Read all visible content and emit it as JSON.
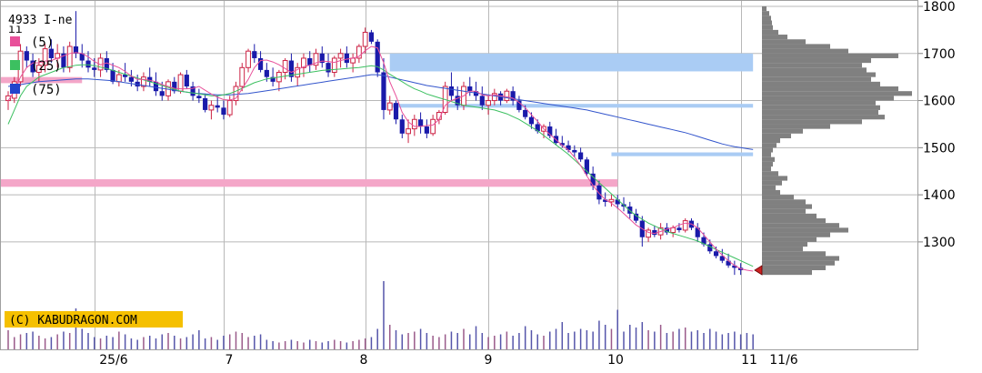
{
  "chart_data": {
    "type": "candlestick",
    "title": "4933 I-ne",
    "copyright": "(C) KABUDRAGON.COM",
    "y_ticks": [
      1800,
      1700,
      1600,
      1500,
      1400,
      1300
    ],
    "x_labels": [
      "25/6",
      "7",
      "8",
      "9",
      "10",
      "11",
      "11/6"
    ],
    "ylim": [
      1200,
      1800
    ],
    "grid": true,
    "legend": [
      {
        "label": "(5)",
        "color": "#e8509a"
      },
      {
        "label": "(25)",
        "color": "#3cc060"
      },
      {
        "label": "(75)",
        "color": "#2244cc"
      }
    ],
    "colors": {
      "up": "#cc2244",
      "down": "#1a1aaa",
      "ma5": "#e8509a",
      "ma25": "#3cc060",
      "ma75": "#3355cc",
      "support_zone": "#f4a6c8",
      "resistance_zone": "#aaccf4",
      "volume": "#5555aa",
      "profile": "#808080",
      "current_marker": "#cc2222"
    },
    "volume_profile": {
      "bins": [
        [
          1795,
          5
        ],
        [
          1785,
          8
        ],
        [
          1775,
          10
        ],
        [
          1765,
          11
        ],
        [
          1755,
          12
        ],
        [
          1745,
          18
        ],
        [
          1735,
          28
        ],
        [
          1725,
          48
        ],
        [
          1715,
          75
        ],
        [
          1705,
          95
        ],
        [
          1695,
          150
        ],
        [
          1685,
          120
        ],
        [
          1675,
          110
        ],
        [
          1665,
          115
        ],
        [
          1655,
          125
        ],
        [
          1645,
          120
        ],
        [
          1635,
          130
        ],
        [
          1625,
          150
        ],
        [
          1615,
          165
        ],
        [
          1605,
          145
        ],
        [
          1595,
          125
        ],
        [
          1585,
          130
        ],
        [
          1575,
          128
        ],
        [
          1565,
          135
        ],
        [
          1555,
          110
        ],
        [
          1545,
          75
        ],
        [
          1535,
          45
        ],
        [
          1525,
          32
        ],
        [
          1515,
          20
        ],
        [
          1505,
          16
        ],
        [
          1495,
          12
        ],
        [
          1485,
          10
        ],
        [
          1475,
          14
        ],
        [
          1465,
          12
        ],
        [
          1455,
          10
        ],
        [
          1445,
          18
        ],
        [
          1435,
          28
        ],
        [
          1425,
          22
        ],
        [
          1415,
          15
        ],
        [
          1405,
          20
        ],
        [
          1395,
          35
        ],
        [
          1385,
          48
        ],
        [
          1375,
          55
        ],
        [
          1365,
          48
        ],
        [
          1355,
          60
        ],
        [
          1345,
          70
        ],
        [
          1335,
          85
        ],
        [
          1325,
          95
        ],
        [
          1315,
          75
        ],
        [
          1305,
          60
        ],
        [
          1295,
          50
        ],
        [
          1285,
          45
        ],
        [
          1275,
          70
        ],
        [
          1265,
          85
        ],
        [
          1255,
          80
        ],
        [
          1245,
          70
        ],
        [
          1235,
          55
        ]
      ]
    },
    "zones": [
      {
        "type": "support",
        "from": 1417,
        "to": 1433,
        "start_index": 0,
        "end_index": 99
      },
      {
        "type": "support",
        "from": 1637,
        "to": 1650,
        "start_index": 0,
        "end_index": 12
      },
      {
        "type": "resistance",
        "from": 1662,
        "to": 1700,
        "start_index": 62,
        "end_index": 121
      },
      {
        "type": "resistance",
        "from": 1585,
        "to": 1593,
        "start_index": 62,
        "end_index": 121
      },
      {
        "type": "resistance",
        "from": 1482,
        "to": 1490,
        "start_index": 98,
        "end_index": 121
      }
    ],
    "last_price": 1240,
    "day_label_indices": [
      14,
      35,
      58,
      78,
      99,
      119
    ],
    "ohlc": [
      [
        1600,
        1620,
        1580,
        1610
      ],
      [
        1605,
        1650,
        1595,
        1640
      ],
      [
        1640,
        1720,
        1630,
        1705
      ],
      [
        1705,
        1715,
        1670,
        1685
      ],
      [
        1685,
        1700,
        1650,
        1660
      ],
      [
        1660,
        1690,
        1640,
        1675
      ],
      [
        1675,
        1720,
        1660,
        1710
      ],
      [
        1710,
        1730,
        1680,
        1690
      ],
      [
        1690,
        1720,
        1670,
        1700
      ],
      [
        1700,
        1715,
        1660,
        1670
      ],
      [
        1670,
        1725,
        1660,
        1715
      ],
      [
        1715,
        1790,
        1690,
        1700
      ],
      [
        1700,
        1720,
        1670,
        1685
      ],
      [
        1685,
        1705,
        1660,
        1670
      ],
      [
        1670,
        1690,
        1650,
        1665
      ],
      [
        1665,
        1700,
        1650,
        1690
      ],
      [
        1690,
        1705,
        1660,
        1665
      ],
      [
        1665,
        1680,
        1635,
        1640
      ],
      [
        1640,
        1665,
        1630,
        1655
      ],
      [
        1655,
        1680,
        1640,
        1650
      ],
      [
        1650,
        1665,
        1630,
        1640
      ],
      [
        1640,
        1655,
        1620,
        1630
      ],
      [
        1630,
        1660,
        1620,
        1650
      ],
      [
        1650,
        1670,
        1630,
        1640
      ],
      [
        1640,
        1660,
        1610,
        1620
      ],
      [
        1620,
        1640,
        1600,
        1610
      ],
      [
        1610,
        1645,
        1600,
        1640
      ],
      [
        1640,
        1650,
        1615,
        1620
      ],
      [
        1620,
        1660,
        1615,
        1655
      ],
      [
        1655,
        1665,
        1625,
        1630
      ],
      [
        1630,
        1640,
        1600,
        1610
      ],
      [
        1610,
        1625,
        1595,
        1605
      ],
      [
        1605,
        1615,
        1575,
        1580
      ],
      [
        1580,
        1600,
        1560,
        1590
      ],
      [
        1590,
        1610,
        1575,
        1585
      ],
      [
        1585,
        1600,
        1560,
        1570
      ],
      [
        1570,
        1610,
        1565,
        1600
      ],
      [
        1600,
        1640,
        1590,
        1630
      ],
      [
        1630,
        1680,
        1620,
        1670
      ],
      [
        1670,
        1710,
        1660,
        1705
      ],
      [
        1705,
        1720,
        1680,
        1690
      ],
      [
        1690,
        1705,
        1660,
        1665
      ],
      [
        1665,
        1680,
        1640,
        1650
      ],
      [
        1650,
        1670,
        1630,
        1640
      ],
      [
        1640,
        1665,
        1620,
        1660
      ],
      [
        1660,
        1690,
        1645,
        1685
      ],
      [
        1685,
        1700,
        1640,
        1650
      ],
      [
        1650,
        1680,
        1630,
        1670
      ],
      [
        1670,
        1700,
        1650,
        1690
      ],
      [
        1690,
        1705,
        1660,
        1675
      ],
      [
        1675,
        1710,
        1665,
        1700
      ],
      [
        1700,
        1715,
        1670,
        1680
      ],
      [
        1680,
        1700,
        1650,
        1660
      ],
      [
        1660,
        1695,
        1650,
        1690
      ],
      [
        1690,
        1710,
        1670,
        1700
      ],
      [
        1700,
        1715,
        1670,
        1680
      ],
      [
        1680,
        1700,
        1660,
        1690
      ],
      [
        1690,
        1720,
        1680,
        1715
      ],
      [
        1715,
        1755,
        1700,
        1745
      ],
      [
        1745,
        1750,
        1720,
        1725
      ],
      [
        1725,
        1730,
        1650,
        1660
      ],
      [
        1660,
        1690,
        1560,
        1580
      ],
      [
        1580,
        1610,
        1570,
        1595
      ],
      [
        1595,
        1600,
        1550,
        1560
      ],
      [
        1560,
        1570,
        1520,
        1530
      ],
      [
        1530,
        1560,
        1510,
        1540
      ],
      [
        1540,
        1570,
        1525,
        1560
      ],
      [
        1560,
        1575,
        1530,
        1545
      ],
      [
        1545,
        1560,
        1520,
        1530
      ],
      [
        1530,
        1570,
        1525,
        1560
      ],
      [
        1560,
        1580,
        1550,
        1575
      ],
      [
        1575,
        1640,
        1570,
        1630
      ],
      [
        1630,
        1660,
        1600,
        1610
      ],
      [
        1610,
        1630,
        1580,
        1590
      ],
      [
        1590,
        1640,
        1580,
        1630
      ],
      [
        1630,
        1650,
        1610,
        1620
      ],
      [
        1620,
        1640,
        1600,
        1610
      ],
      [
        1610,
        1630,
        1580,
        1590
      ],
      [
        1590,
        1610,
        1570,
        1600
      ],
      [
        1600,
        1625,
        1590,
        1615
      ],
      [
        1615,
        1620,
        1590,
        1600
      ],
      [
        1600,
        1625,
        1595,
        1620
      ],
      [
        1620,
        1630,
        1590,
        1600
      ],
      [
        1600,
        1610,
        1575,
        1580
      ],
      [
        1580,
        1590,
        1560,
        1565
      ],
      [
        1565,
        1575,
        1540,
        1550
      ],
      [
        1550,
        1560,
        1530,
        1535
      ],
      [
        1535,
        1550,
        1520,
        1545
      ],
      [
        1545,
        1555,
        1520,
        1525
      ],
      [
        1525,
        1540,
        1505,
        1510
      ],
      [
        1510,
        1525,
        1500,
        1505
      ],
      [
        1505,
        1515,
        1490,
        1495
      ],
      [
        1495,
        1505,
        1480,
        1490
      ],
      [
        1490,
        1500,
        1470,
        1475
      ],
      [
        1475,
        1480,
        1440,
        1445
      ],
      [
        1445,
        1460,
        1410,
        1420
      ],
      [
        1420,
        1430,
        1380,
        1390
      ],
      [
        1390,
        1405,
        1375,
        1385
      ],
      [
        1385,
        1400,
        1375,
        1390
      ],
      [
        1390,
        1400,
        1370,
        1380
      ],
      [
        1380,
        1395,
        1365,
        1375
      ],
      [
        1375,
        1385,
        1350,
        1360
      ],
      [
        1360,
        1370,
        1340,
        1345
      ],
      [
        1345,
        1355,
        1290,
        1310
      ],
      [
        1310,
        1330,
        1300,
        1325
      ],
      [
        1325,
        1335,
        1310,
        1315
      ],
      [
        1315,
        1340,
        1305,
        1330
      ],
      [
        1330,
        1340,
        1315,
        1320
      ],
      [
        1320,
        1335,
        1310,
        1330
      ],
      [
        1330,
        1340,
        1320,
        1325
      ],
      [
        1325,
        1350,
        1320,
        1345
      ],
      [
        1345,
        1350,
        1325,
        1330
      ],
      [
        1330,
        1340,
        1300,
        1310
      ],
      [
        1310,
        1320,
        1290,
        1295
      ],
      [
        1295,
        1305,
        1275,
        1280
      ],
      [
        1280,
        1290,
        1265,
        1270
      ],
      [
        1270,
        1285,
        1255,
        1260
      ],
      [
        1260,
        1275,
        1245,
        1250
      ],
      [
        1250,
        1260,
        1230,
        1245
      ],
      [
        1245,
        1255,
        1230,
        1240
      ]
    ],
    "volume": [
      28,
      18,
      22,
      24,
      26,
      20,
      16,
      18,
      22,
      26,
      24,
      60,
      30,
      24,
      18,
      16,
      20,
      18,
      26,
      22,
      16,
      14,
      18,
      20,
      16,
      22,
      24,
      20,
      16,
      18,
      22,
      28,
      16,
      18,
      14,
      20,
      22,
      26,
      24,
      18,
      20,
      22,
      14,
      12,
      10,
      12,
      14,
      12,
      10,
      14,
      12,
      10,
      12,
      14,
      12,
      10,
      12,
      14,
      16,
      18,
      30,
      100,
      36,
      28,
      22,
      24,
      26,
      30,
      24,
      20,
      18,
      22,
      26,
      24,
      30,
      22,
      34,
      24,
      18,
      20,
      22,
      26,
      20,
      24,
      34,
      28,
      22,
      20,
      26,
      30,
      40,
      24,
      26,
      30,
      28,
      26,
      42,
      36,
      30,
      58,
      26,
      36,
      32,
      40,
      28,
      26,
      36,
      24,
      26,
      30,
      32,
      26,
      28,
      24,
      30,
      26,
      22,
      24,
      26,
      22,
      24,
      22
    ],
    "ma5": [
      1600,
      1620,
      1650,
      1670,
      1680,
      1680,
      1684,
      1685,
      1690,
      1695,
      1700,
      1702,
      1700,
      1693,
      1683,
      1676,
      1680,
      1675,
      1670,
      1662,
      1652,
      1645,
      1645,
      1643,
      1640,
      1634,
      1630,
      1626,
      1625,
      1625,
      1626,
      1630,
      1622,
      1614,
      1607,
      1602,
      1601,
      1605,
      1625,
      1645,
      1670,
      1685,
      1686,
      1682,
      1676,
      1668,
      1660,
      1666,
      1672,
      1675,
      1680,
      1684,
      1683,
      1681,
      1685,
      1688,
      1690,
      1694,
      1706,
      1715,
      1712,
      1680,
      1640,
      1610,
      1575,
      1555,
      1545,
      1545,
      1547,
      1548,
      1560,
      1590,
      1600,
      1605,
      1610,
      1620,
      1620,
      1612,
      1610,
      1612,
      1610,
      1608,
      1605,
      1596,
      1585,
      1570,
      1556,
      1540,
      1528,
      1517,
      1505,
      1495,
      1480,
      1462,
      1440,
      1420,
      1403,
      1390,
      1382,
      1372,
      1360,
      1348,
      1336,
      1328,
      1320,
      1318,
      1322,
      1327,
      1330,
      1336,
      1340,
      1338,
      1330,
      1315,
      1300,
      1285,
      1272,
      1260,
      1250,
      1243,
      1240,
      1238
    ],
    "ma25": [
      1550,
      1580,
      1610,
      1630,
      1640,
      1650,
      1655,
      1660,
      1665,
      1670,
      1672,
      1675,
      1676,
      1676,
      1674,
      1671,
      1668,
      1664,
      1660,
      1656,
      1652,
      1648,
      1644,
      1640,
      1636,
      1632,
      1628,
      1624,
      1620,
      1618,
      1616,
      1614,
      1612,
      1610,
      1610,
      1612,
      1615,
      1620,
      1626,
      1632,
      1638,
      1642,
      1646,
      1648,
      1650,
      1652,
      1654,
      1656,
      1658,
      1660,
      1662,
      1664,
      1665,
      1666,
      1667,
      1668,
      1669,
      1670,
      1672,
      1674,
      1672,
      1665,
      1656,
      1648,
      1640,
      1632,
      1625,
      1620,
      1614,
      1610,
      1606,
      1602,
      1598,
      1594,
      1590,
      1588,
      1586,
      1584,
      1582,
      1580,
      1576,
      1572,
      1566,
      1560,
      1552,
      1544,
      1536,
      1526,
      1516,
      1506,
      1496,
      1486,
      1474,
      1462,
      1450,
      1438,
      1426,
      1414,
      1402,
      1390,
      1378,
      1366,
      1356,
      1348,
      1340,
      1334,
      1328,
      1322,
      1318,
      1314,
      1310,
      1306,
      1302,
      1296,
      1290,
      1284,
      1278,
      1272,
      1266,
      1260,
      1254,
      1248
    ],
    "ma75": [
      1630,
      1632,
      1634,
      1636,
      1638,
      1640,
      1641,
      1642,
      1643,
      1644,
      1645,
      1646,
      1646,
      1646,
      1645,
      1644,
      1643,
      1642,
      1640,
      1638,
      1636,
      1634,
      1632,
      1630,
      1628,
      1626,
      1624,
      1622,
      1620,
      1618,
      1616,
      1615,
      1614,
      1613,
      1612,
      1612,
      1612,
      1613,
      1614,
      1615,
      1617,
      1619,
      1621,
      1623,
      1625,
      1627,
      1629,
      1631,
      1633,
      1635,
      1637,
      1639,
      1641,
      1643,
      1645,
      1647,
      1649,
      1651,
      1653,
      1655,
      1655,
      1653,
      1650,
      1647,
      1644,
      1641,
      1638,
      1635,
      1632,
      1630,
      1628,
      1626,
      1624,
      1622,
      1620,
      1618,
      1616,
      1614,
      1612,
      1610,
      1608,
      1606,
      1604,
      1602,
      1600,
      1598,
      1596,
      1594,
      1592,
      1590,
      1588,
      1586,
      1584,
      1582,
      1580,
      1577,
      1574,
      1571,
      1568,
      1565,
      1562,
      1559,
      1556,
      1553,
      1550,
      1547,
      1544,
      1541,
      1538,
      1535,
      1532,
      1528,
      1524,
      1520,
      1516,
      1512,
      1508,
      1505,
      1502,
      1500,
      1498,
      1496
    ]
  }
}
